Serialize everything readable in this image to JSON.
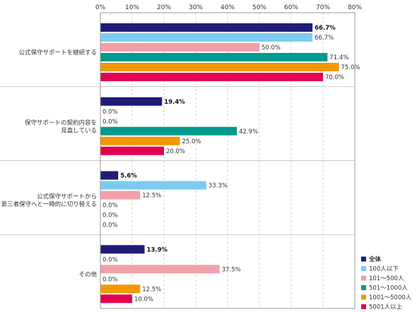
{
  "chart_data": {
    "type": "bar",
    "orientation": "horizontal",
    "title": "",
    "xlabel": "",
    "ylabel": "",
    "xlim": [
      0,
      80
    ],
    "x_ticks": [
      "0%",
      "10%",
      "20%",
      "30%",
      "40%",
      "50%",
      "60%",
      "70%",
      "80%"
    ],
    "grid": "vertical dashed",
    "legend_position": "bottom-right",
    "categories": [
      [
        "公式保守サポートを継続する"
      ],
      [
        "保守サポートの契約内容を",
        "見直している"
      ],
      [
        "公式保守サポートから",
        "第三者保守へと一時的に切り替える"
      ],
      [
        "その他"
      ]
    ],
    "series": [
      {
        "name": "全体",
        "color": "#1f1c78",
        "values": [
          66.7,
          19.4,
          5.6,
          13.9
        ],
        "labels": [
          "66.7%",
          "19.4%",
          "5.6%",
          "13.9%"
        ],
        "bold": true
      },
      {
        "name": "100人以下",
        "color": "#7ecbf2",
        "values": [
          66.7,
          0.0,
          33.3,
          0.0
        ],
        "labels": [
          "66.7%",
          "0.0%",
          "33.3%",
          "0.0%"
        ]
      },
      {
        "name": "101～500人",
        "color": "#f2a0aa",
        "values": [
          50.0,
          0.0,
          12.5,
          37.5
        ],
        "labels": [
          "50.0%",
          "0.0%",
          "12.5%",
          "37.5%"
        ]
      },
      {
        "name": "501～1000人",
        "color": "#009a8e",
        "values": [
          71.4,
          42.9,
          0.0,
          0.0
        ],
        "labels": [
          "71.4%",
          "42.9%",
          "0.0%",
          "0.0%"
        ]
      },
      {
        "name": "1001～5000人",
        "color": "#f39800",
        "values": [
          75.0,
          25.0,
          0.0,
          12.5
        ],
        "labels": [
          "75.0%",
          "25.0%",
          "0.0%",
          "12.5%"
        ]
      },
      {
        "name": "5001人以上",
        "color": "#e2004f",
        "values": [
          70.0,
          20.0,
          0.0,
          10.0
        ],
        "labels": [
          "70.0%",
          "20.0%",
          "0.0%",
          "10.0%"
        ]
      }
    ]
  }
}
